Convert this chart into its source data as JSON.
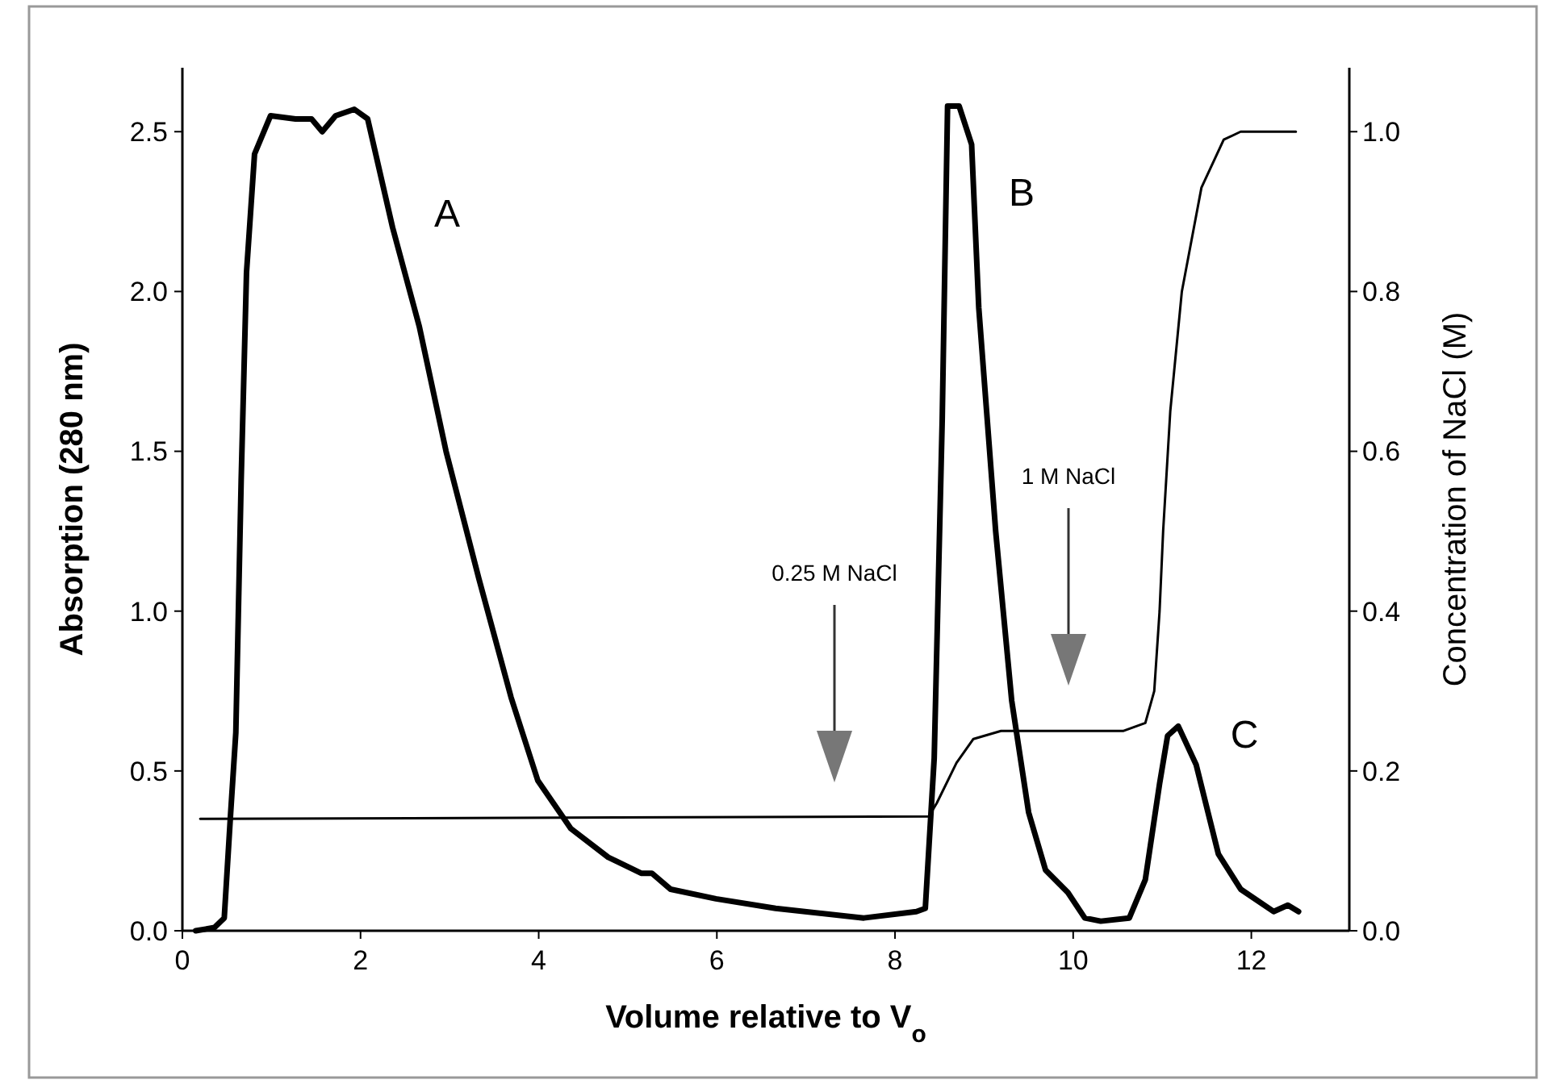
{
  "chart_data": {
    "type": "line",
    "xlabel": "Volume relative to V$_{o}$",
    "ylabel": "Absorption (280 nm)",
    "y2label": "Concentration of NaCl (M)",
    "xlim": [
      0,
      13.1
    ],
    "xticks": [
      0,
      2,
      4,
      6,
      8,
      10,
      12
    ],
    "ylim": [
      0,
      2.7
    ],
    "yticks": [
      {
        "value": 0,
        "label": "0.0"
      },
      {
        "value": 0.5,
        "label": "0.5"
      },
      {
        "value": 1,
        "label": "1.0"
      },
      {
        "value": 1.5,
        "label": "1.5"
      },
      {
        "value": 2,
        "label": "2.0"
      },
      {
        "value": 2.5,
        "label": "2.5"
      }
    ],
    "y2lim": [
      0,
      1.08
    ],
    "y2ticks": [
      {
        "value": 0,
        "label": "0.0"
      },
      {
        "value": 0.2,
        "label": "0.2"
      },
      {
        "value": 0.4,
        "label": "0.4"
      },
      {
        "value": 0.6,
        "label": "0.6"
      },
      {
        "value": 0.8,
        "label": "0.8"
      },
      {
        "value": 1,
        "label": "1.0"
      }
    ],
    "grid": false,
    "marker": "none",
    "line_style": "solid",
    "series": [
      {
        "color": "#000000",
        "x": [
          0.15,
          0.36,
          0.47,
          0.54,
          0.6,
          0.66,
          0.72,
          0.81,
          0.99,
          1.27,
          1.45,
          1.57,
          1.72,
          1.93,
          2.08,
          2.36,
          2.66,
          2.96,
          3.33,
          3.69,
          3.99,
          4.36,
          4.78,
          5.15,
          5.27,
          5.48,
          5.99,
          6.66,
          7.65,
          8.24,
          8.34,
          8.44,
          8.53,
          8.59,
          8.72,
          8.86,
          8.94,
          9.13,
          9.31,
          9.5,
          9.69,
          9.94,
          10.13,
          10.31,
          10.63,
          10.81,
          10.97,
          11.06,
          11.18,
          11.38,
          11.63,
          11.88,
          12.25,
          12.41,
          12.53
        ],
        "values": [
          0,
          0.01,
          0.04,
          0.36,
          0.62,
          1.41,
          2.06,
          2.43,
          2.55,
          2.54,
          2.54,
          2.5,
          2.55,
          2.57,
          2.54,
          2.2,
          1.89,
          1.5,
          1.1,
          0.73,
          0.47,
          0.32,
          0.23,
          0.18,
          0.18,
          0.13,
          0.1,
          0.07,
          0.04,
          0.06,
          0.07,
          0.54,
          1.6,
          2.58,
          2.58,
          2.46,
          1.95,
          1.25,
          0.72,
          0.37,
          0.19,
          0.12,
          0.04,
          0.03,
          0.04,
          0.16,
          0.46,
          0.61,
          0.64,
          0.52,
          0.24,
          0.13,
          0.06,
          0.08,
          0.06
        ]
      },
      {
        "color": "#000000",
        "axis": "y2",
        "x": [
          0.2,
          8.38,
          8.47,
          8.69,
          8.88,
          9.19,
          10.56,
          10.81,
          10.91,
          10.97,
          11.01,
          11.09,
          11.22,
          11.44,
          11.69,
          11.88,
          12.5
        ],
        "values": [
          0.14,
          0.143,
          0.16,
          0.21,
          0.24,
          0.25,
          0.25,
          0.26,
          0.3,
          0.4,
          0.5,
          0.65,
          0.8,
          0.93,
          0.99,
          1.0,
          1.0
        ]
      }
    ],
    "annotations": [
      "A",
      "B",
      "C",
      "0.25 M NaCl",
      "1 M NaCl"
    ]
  }
}
